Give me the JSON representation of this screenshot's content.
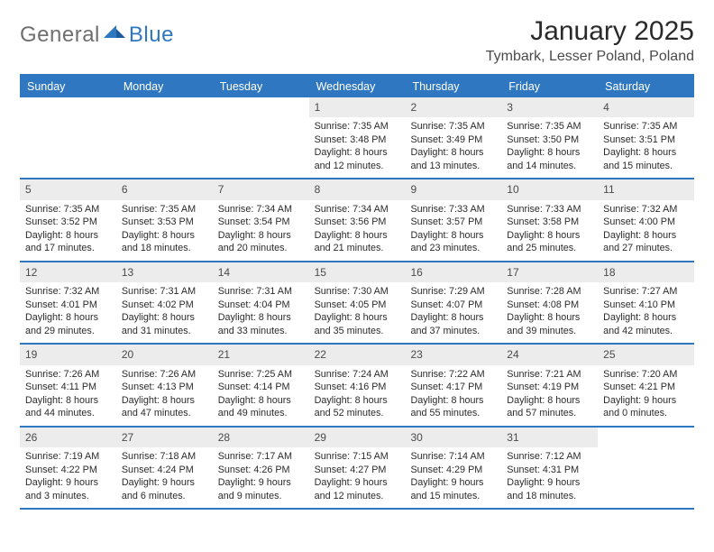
{
  "logo": {
    "part1": "General",
    "part2": "Blue"
  },
  "title": "January 2025",
  "location": "Tymbark, Lesser Poland, Poland",
  "colors": {
    "brand_blue": "#2f78c1",
    "header_grey": "#ececec",
    "text": "#232323",
    "logo_grey": "#6f6f6f"
  },
  "daysOfWeek": [
    "Sunday",
    "Monday",
    "Tuesday",
    "Wednesday",
    "Thursday",
    "Friday",
    "Saturday"
  ],
  "weeks": [
    [
      {
        "n": "",
        "sr": "",
        "ss": "",
        "dl": ""
      },
      {
        "n": "",
        "sr": "",
        "ss": "",
        "dl": ""
      },
      {
        "n": "",
        "sr": "",
        "ss": "",
        "dl": ""
      },
      {
        "n": "1",
        "sr": "Sunrise: 7:35 AM",
        "ss": "Sunset: 3:48 PM",
        "dl": "Daylight: 8 hours and 12 minutes."
      },
      {
        "n": "2",
        "sr": "Sunrise: 7:35 AM",
        "ss": "Sunset: 3:49 PM",
        "dl": "Daylight: 8 hours and 13 minutes."
      },
      {
        "n": "3",
        "sr": "Sunrise: 7:35 AM",
        "ss": "Sunset: 3:50 PM",
        "dl": "Daylight: 8 hours and 14 minutes."
      },
      {
        "n": "4",
        "sr": "Sunrise: 7:35 AM",
        "ss": "Sunset: 3:51 PM",
        "dl": "Daylight: 8 hours and 15 minutes."
      }
    ],
    [
      {
        "n": "5",
        "sr": "Sunrise: 7:35 AM",
        "ss": "Sunset: 3:52 PM",
        "dl": "Daylight: 8 hours and 17 minutes."
      },
      {
        "n": "6",
        "sr": "Sunrise: 7:35 AM",
        "ss": "Sunset: 3:53 PM",
        "dl": "Daylight: 8 hours and 18 minutes."
      },
      {
        "n": "7",
        "sr": "Sunrise: 7:34 AM",
        "ss": "Sunset: 3:54 PM",
        "dl": "Daylight: 8 hours and 20 minutes."
      },
      {
        "n": "8",
        "sr": "Sunrise: 7:34 AM",
        "ss": "Sunset: 3:56 PM",
        "dl": "Daylight: 8 hours and 21 minutes."
      },
      {
        "n": "9",
        "sr": "Sunrise: 7:33 AM",
        "ss": "Sunset: 3:57 PM",
        "dl": "Daylight: 8 hours and 23 minutes."
      },
      {
        "n": "10",
        "sr": "Sunrise: 7:33 AM",
        "ss": "Sunset: 3:58 PM",
        "dl": "Daylight: 8 hours and 25 minutes."
      },
      {
        "n": "11",
        "sr": "Sunrise: 7:32 AM",
        "ss": "Sunset: 4:00 PM",
        "dl": "Daylight: 8 hours and 27 minutes."
      }
    ],
    [
      {
        "n": "12",
        "sr": "Sunrise: 7:32 AM",
        "ss": "Sunset: 4:01 PM",
        "dl": "Daylight: 8 hours and 29 minutes."
      },
      {
        "n": "13",
        "sr": "Sunrise: 7:31 AM",
        "ss": "Sunset: 4:02 PM",
        "dl": "Daylight: 8 hours and 31 minutes."
      },
      {
        "n": "14",
        "sr": "Sunrise: 7:31 AM",
        "ss": "Sunset: 4:04 PM",
        "dl": "Daylight: 8 hours and 33 minutes."
      },
      {
        "n": "15",
        "sr": "Sunrise: 7:30 AM",
        "ss": "Sunset: 4:05 PM",
        "dl": "Daylight: 8 hours and 35 minutes."
      },
      {
        "n": "16",
        "sr": "Sunrise: 7:29 AM",
        "ss": "Sunset: 4:07 PM",
        "dl": "Daylight: 8 hours and 37 minutes."
      },
      {
        "n": "17",
        "sr": "Sunrise: 7:28 AM",
        "ss": "Sunset: 4:08 PM",
        "dl": "Daylight: 8 hours and 39 minutes."
      },
      {
        "n": "18",
        "sr": "Sunrise: 7:27 AM",
        "ss": "Sunset: 4:10 PM",
        "dl": "Daylight: 8 hours and 42 minutes."
      }
    ],
    [
      {
        "n": "19",
        "sr": "Sunrise: 7:26 AM",
        "ss": "Sunset: 4:11 PM",
        "dl": "Daylight: 8 hours and 44 minutes."
      },
      {
        "n": "20",
        "sr": "Sunrise: 7:26 AM",
        "ss": "Sunset: 4:13 PM",
        "dl": "Daylight: 8 hours and 47 minutes."
      },
      {
        "n": "21",
        "sr": "Sunrise: 7:25 AM",
        "ss": "Sunset: 4:14 PM",
        "dl": "Daylight: 8 hours and 49 minutes."
      },
      {
        "n": "22",
        "sr": "Sunrise: 7:24 AM",
        "ss": "Sunset: 4:16 PM",
        "dl": "Daylight: 8 hours and 52 minutes."
      },
      {
        "n": "23",
        "sr": "Sunrise: 7:22 AM",
        "ss": "Sunset: 4:17 PM",
        "dl": "Daylight: 8 hours and 55 minutes."
      },
      {
        "n": "24",
        "sr": "Sunrise: 7:21 AM",
        "ss": "Sunset: 4:19 PM",
        "dl": "Daylight: 8 hours and 57 minutes."
      },
      {
        "n": "25",
        "sr": "Sunrise: 7:20 AM",
        "ss": "Sunset: 4:21 PM",
        "dl": "Daylight: 9 hours and 0 minutes."
      }
    ],
    [
      {
        "n": "26",
        "sr": "Sunrise: 7:19 AM",
        "ss": "Sunset: 4:22 PM",
        "dl": "Daylight: 9 hours and 3 minutes."
      },
      {
        "n": "27",
        "sr": "Sunrise: 7:18 AM",
        "ss": "Sunset: 4:24 PM",
        "dl": "Daylight: 9 hours and 6 minutes."
      },
      {
        "n": "28",
        "sr": "Sunrise: 7:17 AM",
        "ss": "Sunset: 4:26 PM",
        "dl": "Daylight: 9 hours and 9 minutes."
      },
      {
        "n": "29",
        "sr": "Sunrise: 7:15 AM",
        "ss": "Sunset: 4:27 PM",
        "dl": "Daylight: 9 hours and 12 minutes."
      },
      {
        "n": "30",
        "sr": "Sunrise: 7:14 AM",
        "ss": "Sunset: 4:29 PM",
        "dl": "Daylight: 9 hours and 15 minutes."
      },
      {
        "n": "31",
        "sr": "Sunrise: 7:12 AM",
        "ss": "Sunset: 4:31 PM",
        "dl": "Daylight: 9 hours and 18 minutes."
      },
      {
        "n": "",
        "sr": "",
        "ss": "",
        "dl": ""
      }
    ]
  ]
}
